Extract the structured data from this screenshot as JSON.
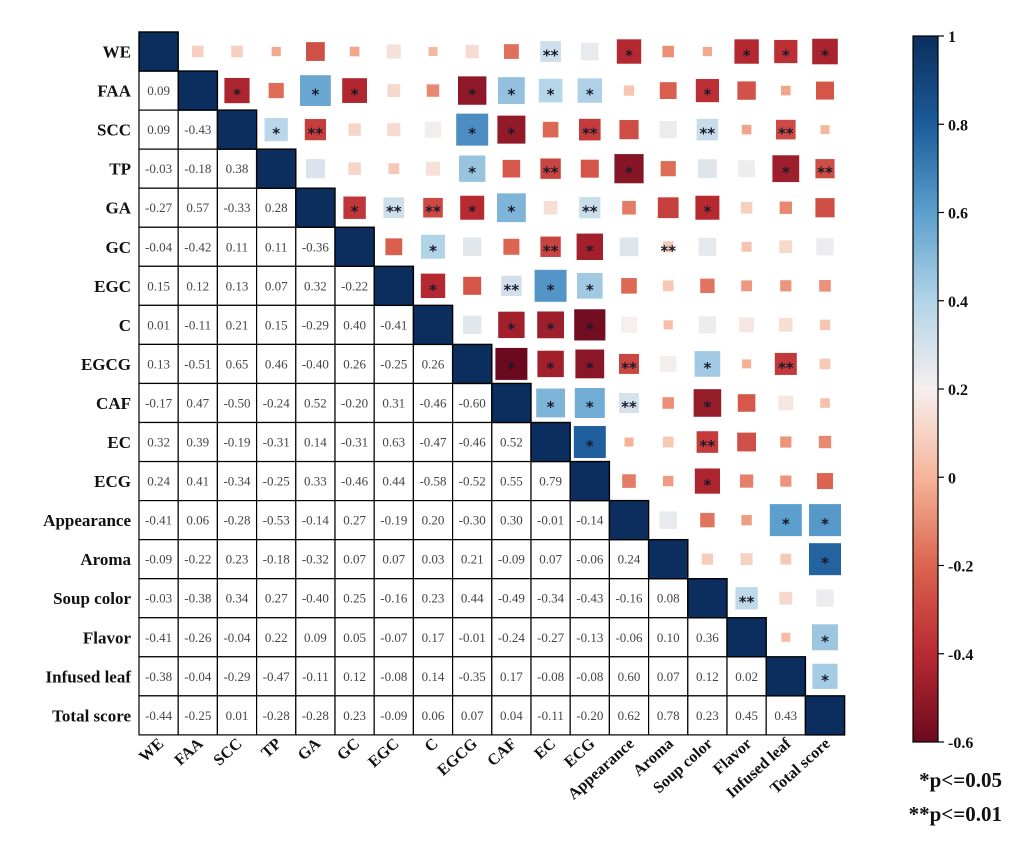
{
  "chart_data": {
    "type": "heatmap",
    "variables": [
      "WE",
      "FAA",
      "SCC",
      "TP",
      "GA",
      "GC",
      "EGC",
      "C",
      "EGCG",
      "CAF",
      "EC",
      "ECG",
      "Appearance",
      "Aroma",
      "Soup color",
      "Flavor",
      "Infused leaf",
      "Total score"
    ],
    "lower_triangle_values": [
      [],
      [
        "0.09"
      ],
      [
        "0.09",
        "-0.43"
      ],
      [
        "-0.03",
        "-0.18",
        "0.38"
      ],
      [
        "-0.27",
        "0.57",
        "-0.33",
        "0.28"
      ],
      [
        "-0.04",
        "-0.42",
        "0.11",
        "0.11",
        "-0.36"
      ],
      [
        "0.15",
        "0.12",
        "0.13",
        "0.07",
        "0.32",
        "-0.22"
      ],
      [
        "0.01",
        "-0.11",
        "0.21",
        "0.15",
        "-0.29",
        "0.40",
        "-0.41"
      ],
      [
        "0.13",
        "-0.51",
        "0.65",
        "0.46",
        "-0.40",
        "0.26",
        "-0.25",
        "0.26"
      ],
      [
        "-0.17",
        "0.47",
        "-0.50",
        "-0.24",
        "0.52",
        "-0.20",
        "0.31",
        "-0.46",
        "-0.60"
      ],
      [
        "0.32",
        "0.39",
        "-0.19",
        "-0.31",
        "0.14",
        "-0.31",
        "0.63",
        "-0.47",
        "-0.46",
        "0.52"
      ],
      [
        "0.24",
        "0.41",
        "-0.34",
        "-0.25",
        "0.33",
        "-0.46",
        "0.44",
        "-0.58",
        "-0.52",
        "0.55",
        "0.79"
      ],
      [
        "-0.41",
        "0.06",
        "-0.28",
        "-0.53",
        "-0.14",
        "0.27",
        "-0.19",
        "0.20",
        "-0.30",
        "0.30",
        "-0.01",
        "-0.14"
      ],
      [
        "-0.09",
        "-0.22",
        "0.23",
        "-0.18",
        "-0.32",
        "0.07",
        "0.07",
        "0.03",
        "0.21",
        "-0.09",
        "0.07",
        "-0.06",
        "0.24"
      ],
      [
        "-0.03",
        "-0.38",
        "0.34",
        "0.27",
        "-0.40",
        "0.25",
        "-0.16",
        "0.23",
        "0.44",
        "-0.49",
        "-0.34",
        "-0.43",
        "-0.16",
        "0.08"
      ],
      [
        "-0.41",
        "-0.26",
        "-0.04",
        "0.22",
        "0.09",
        "0.05",
        "-0.07",
        "0.17",
        "-0.01",
        "-0.24",
        "-0.27",
        "-0.13",
        "-0.06",
        "0.10",
        "0.36"
      ],
      [
        "-0.38",
        "-0.04",
        "-0.29",
        "-0.47",
        "-0.11",
        "0.12",
        "-0.08",
        "0.14",
        "-0.35",
        "0.17",
        "-0.08",
        "-0.08",
        "0.60",
        "0.07",
        "0.12",
        "0.02"
      ],
      [
        "-0.44",
        "-0.25",
        "0.01",
        "-0.28",
        "-0.28",
        "0.23",
        "-0.09",
        "0.06",
        "0.07",
        "0.04",
        "-0.11",
        "-0.20",
        "0.62",
        "0.78",
        "0.23",
        "0.45",
        "0.43"
      ]
    ],
    "significance_markers": {
      "WE-SCC": "",
      "WE-EC": "**",
      "WE-Appearance": "*",
      "WE-Flavor": "*",
      "WE-Infused leaf": "*",
      "WE-Total score": "*",
      "FAA-SCC": "*",
      "FAA-GA": "*",
      "FAA-GC": "*",
      "FAA-EGCG": "*",
      "FAA-CAF": "*",
      "FAA-EC": "*",
      "FAA-ECG": "*",
      "FAA-Soup color": "*",
      "SCC-TP": "*",
      "SCC-GA": "**",
      "SCC-EGCG": "*",
      "SCC-CAF": "*",
      "SCC-ECG": "**",
      "SCC-Soup color": "**",
      "SCC-Infused leaf": "**",
      "TP-EGCG": "*",
      "TP-EC": "**",
      "TP-Appearance": "*",
      "TP-Infused leaf": "*",
      "TP-Total score": "**",
      "GA-GC": "*",
      "GA-EGC": "**",
      "GA-C": "**",
      "GA-EGCG": "*",
      "GA-CAF": "*",
      "GA-ECG": "**",
      "GA-Soup color": "*",
      "GC-C": "*",
      "GC-EC": "**",
      "GC-ECG": "*",
      "GC-Aroma": "**",
      "EGC-C": "*",
      "EGC-CAF": "**",
      "EGC-EC": "*",
      "EGC-ECG": "*",
      "C-CAF": "*",
      "C-EC": "*",
      "C-ECG": "*",
      "EGCG-CAF": "*",
      "EGCG-EC": "*",
      "EGCG-ECG": "*",
      "EGCG-Appearance": "**",
      "EGCG-Soup color": "*",
      "EGCG-Infused leaf": "**",
      "CAF-EC": "*",
      "CAF-ECG": "*",
      "CAF-Appearance": "**",
      "CAF-Soup color": "*",
      "EC-ECG": "*",
      "EC-Soup color": "**",
      "ECG-Soup color": "*",
      "Appearance-Infused leaf": "*",
      "Appearance-Total score": "*",
      "Aroma-Total score": "*",
      "Soup color-Flavor": "**",
      "Flavor-Total score": "*",
      "Infused leaf-Total score": "*"
    },
    "colorbar": {
      "min": -0.6,
      "max": 1,
      "ticks": [
        "1",
        "0.8",
        "0.6",
        "0.4",
        "0.2",
        "0",
        "-0.2",
        "-0.4",
        "-0.6"
      ]
    },
    "legend": [
      "*p<=0.05",
      "**p<=0.01"
    ],
    "colors": {
      "diag": "#0b2e5e",
      "neg_strong": "#6b0a1f",
      "pos_strong": "#1a5a9e",
      "border": "#000000"
    }
  }
}
